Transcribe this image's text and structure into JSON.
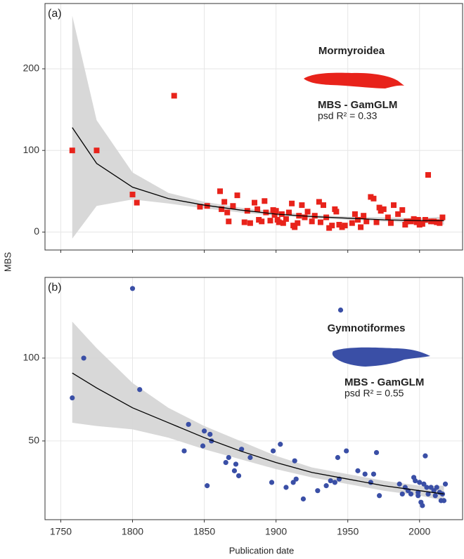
{
  "chart_data": [
    {
      "type": "scatter",
      "panel_label": "(a)",
      "group": "Mormyroidea",
      "model": "MBS - GamGLM",
      "fit_stat": "psd R² = 0.33",
      "ylabel": "MBS",
      "xlim": [
        1739,
        2030
      ],
      "xticks": [
        1750,
        1800,
        1850,
        1900,
        1950,
        2000
      ],
      "xtick_labels": false,
      "ylim": [
        -22,
        280
      ],
      "yticks": [
        0,
        100,
        200
      ],
      "grid": true,
      "marker": "square",
      "series": [
        {
          "color": "#e8231b",
          "x": [
            1758,
            1775,
            1800,
            1803,
            1829,
            1847,
            1852,
            1861,
            1862,
            1864,
            1866,
            1867,
            1870,
            1873,
            1878,
            1880,
            1882,
            1885,
            1887,
            1888,
            1890,
            1892,
            1893,
            1896,
            1898,
            1899,
            1900,
            1901,
            1902,
            1904,
            1905,
            1907,
            1909,
            1911,
            1912,
            1913,
            1915,
            1916,
            1918,
            1920,
            1922,
            1925,
            1927,
            1930,
            1931,
            1933,
            1935,
            1937,
            1939,
            1941,
            1942,
            1944,
            1946,
            1948,
            1953,
            1955,
            1957,
            1959,
            1961,
            1963,
            1966,
            1968,
            1970,
            1972,
            1973,
            1975,
            1978,
            1980,
            1982,
            1985,
            1988,
            1990,
            1991,
            1994,
            1996,
            1998,
            1999,
            2000,
            2002,
            2004,
            2006,
            2008,
            2010,
            2012,
            2014,
            2016
          ],
          "values": [
            100,
            100,
            46,
            36,
            167,
            31,
            32,
            50,
            28,
            37,
            24,
            13,
            32,
            45,
            12,
            26,
            11,
            36,
            28,
            15,
            13,
            38,
            24,
            14,
            27,
            21,
            26,
            15,
            12,
            22,
            11,
            16,
            24,
            35,
            8,
            6,
            11,
            20,
            33,
            18,
            25,
            13,
            20,
            37,
            12,
            33,
            18,
            5,
            8,
            28,
            25,
            9,
            6,
            8,
            11,
            22,
            15,
            6,
            20,
            13,
            43,
            41,
            12,
            30,
            26,
            28,
            18,
            11,
            33,
            22,
            27,
            9,
            13,
            13,
            16,
            12,
            15,
            9,
            10,
            15,
            70,
            13,
            13,
            12,
            11,
            18
          ]
        }
      ],
      "fit": {
        "color": "#000000",
        "band_color": "#d4d4d4",
        "x": [
          1758,
          1775,
          1800,
          1825,
          1850,
          1875,
          1900,
          1925,
          1950,
          1975,
          2000,
          2017
        ],
        "values": [
          128,
          84,
          55,
          41,
          33,
          27,
          22,
          19,
          17,
          15,
          14,
          14
        ],
        "lower": [
          -8,
          32,
          40,
          35,
          29,
          24,
          20,
          17,
          15,
          13,
          11,
          9
        ],
        "upper": [
          265,
          137,
          73,
          48,
          37,
          30,
          25,
          21,
          19,
          18,
          17,
          19
        ]
      }
    },
    {
      "type": "scatter",
      "panel_label": "(b)",
      "group": "Gymnotiformes",
      "model": "MBS - GamGLM",
      "fit_stat": "psd R² = 0.55",
      "xlabel": "Publication date",
      "xlim": [
        1739,
        2030
      ],
      "xticks": [
        1750,
        1800,
        1850,
        1900,
        1950,
        2000
      ],
      "xtick_labels": true,
      "ylim": [
        2.5,
        148.7
      ],
      "yticks": [
        50,
        100
      ],
      "grid": true,
      "marker": "circle",
      "series": [
        {
          "color": "#3a4fa6",
          "x": [
            1758,
            1766,
            1800,
            1805,
            1836,
            1839,
            1849,
            1850,
            1852,
            1854,
            1855,
            1865,
            1867,
            1871,
            1872,
            1874,
            1876,
            1882,
            1897,
            1898,
            1903,
            1907,
            1912,
            1913,
            1914,
            1919,
            1929,
            1935,
            1938,
            1941,
            1943,
            1944,
            1945,
            1949,
            1957,
            1962,
            1966,
            1968,
            1970,
            1972,
            1986,
            1988,
            1990,
            1992,
            1994,
            1996,
            1997,
            1999,
            1999,
            2000,
            2001,
            2002,
            2003,
            2004,
            2005,
            2006,
            2008,
            2010,
            2011,
            2012,
            2014,
            2015,
            2016,
            2017,
            2018
          ],
          "values": [
            76,
            100,
            142,
            81,
            44,
            60,
            47,
            56,
            23,
            54,
            50,
            37,
            40,
            32,
            36,
            29,
            45,
            40,
            25,
            44,
            48,
            22,
            25,
            38,
            27,
            15,
            20,
            23,
            26,
            25,
            40,
            27,
            129,
            44,
            32,
            30,
            25,
            30,
            43,
            17,
            24,
            18,
            22,
            20,
            18,
            28,
            26,
            17,
            19,
            25,
            13,
            11,
            24,
            41,
            22,
            18,
            22,
            20,
            17,
            22,
            19,
            14,
            18,
            14,
            24
          ]
        }
      ],
      "fit": {
        "color": "#000000",
        "band_color": "#d4d4d4",
        "x": [
          1758,
          1775,
          1800,
          1825,
          1850,
          1875,
          1900,
          1925,
          1950,
          1975,
          2000,
          2017
        ],
        "values": [
          91,
          82,
          70,
          61,
          52,
          44,
          37,
          31,
          27,
          23,
          20,
          18
        ],
        "lower": [
          61,
          59,
          57,
          52,
          45,
          39,
          33,
          28,
          24,
          20,
          17,
          14
        ],
        "upper": [
          122,
          106,
          85,
          70,
          59,
          50,
          41,
          34,
          30,
          26,
          23,
          23
        ]
      }
    }
  ]
}
